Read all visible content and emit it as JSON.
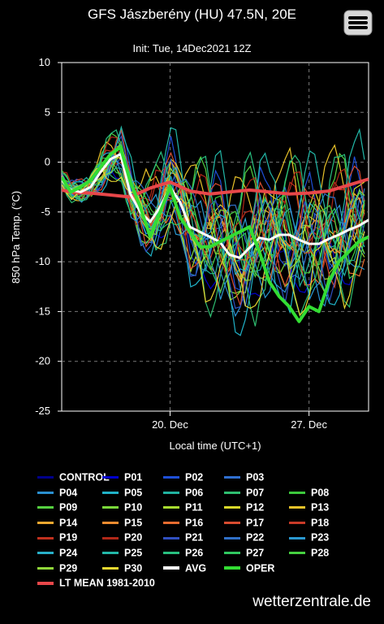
{
  "header": {
    "title": "GFS Jászberény (HU) 47.5N, 20E",
    "subtitle": "Init: Tue, 14Dec2021 12Z",
    "menu_icon": "hamburger-menu-icon"
  },
  "credit": "wetterzentrale.de",
  "chart_data": {
    "type": "line",
    "ylabel": "850 hPa Temp. (°C)",
    "xlabel": "Local time (UTC+1)",
    "ylim": [
      -25,
      10
    ],
    "yticks": [
      10,
      5,
      0,
      -5,
      -10,
      -15,
      -20,
      -25
    ],
    "xlim_days": [
      14.54,
      30.0
    ],
    "xticks": [
      {
        "label": "20. Dec",
        "day": 20
      },
      {
        "label": "27. Dec",
        "day": 27
      }
    ],
    "grid": true,
    "legend_position": "bottom",
    "series": [
      {
        "name": "LT MEAN 1981-2010",
        "color": "#e8474a",
        "width": 4,
        "x": [
          14.54,
          15,
          16,
          17,
          18,
          19,
          20,
          21,
          22,
          23,
          24,
          25,
          26,
          27,
          28,
          29,
          30
        ],
        "y": [
          -2.8,
          -3.0,
          -3.1,
          -3.3,
          -3.5,
          -2.6,
          -2.0,
          -2.9,
          -3.2,
          -3.0,
          -2.8,
          -3.0,
          -3.2,
          -3.1,
          -2.9,
          -2.3,
          -1.7
        ]
      },
      {
        "name": "AVG",
        "color": "#ffffff",
        "width": 3,
        "x": [
          14.54,
          15,
          15.5,
          16,
          16.5,
          17,
          17.5,
          18,
          18.5,
          19,
          19.5,
          20,
          20.5,
          21,
          21.5,
          22,
          22.5,
          23,
          23.5,
          24,
          24.5,
          25,
          25.5,
          26,
          26.5,
          27,
          27.5,
          28,
          28.5,
          29,
          29.5,
          30
        ],
        "y": [
          -1.8,
          -2.8,
          -3.0,
          -2.5,
          -1.0,
          0.3,
          0.8,
          -3.2,
          -5.0,
          -6.0,
          -4.5,
          -2.5,
          -4.0,
          -6.5,
          -7.0,
          -7.5,
          -8.0,
          -9.3,
          -9.6,
          -8.6,
          -7.6,
          -7.8,
          -7.3,
          -7.3,
          -7.8,
          -8.2,
          -8.2,
          -7.7,
          -7.3,
          -6.8,
          -6.4,
          -5.8
        ]
      },
      {
        "name": "OPER",
        "color": "#33dd33",
        "width": 4,
        "x": [
          14.54,
          15,
          15.5,
          16,
          16.5,
          17,
          17.5,
          18,
          18.5,
          19,
          19.5,
          20,
          20.5,
          21,
          21.5,
          22,
          22.5,
          23,
          23.5,
          24,
          24.5,
          25,
          25.5,
          26,
          26.5,
          27,
          27.5,
          28,
          28.5,
          29,
          29.5,
          30
        ],
        "y": [
          -1.5,
          -3.0,
          -2.5,
          -1.8,
          -0.5,
          0.8,
          1.5,
          -2.0,
          -4.5,
          -7.5,
          -5.0,
          -2.5,
          -5.5,
          -7.0,
          -8.5,
          -8.5,
          -8.0,
          -7.5,
          -7.0,
          -6.5,
          -9.0,
          -12.0,
          -13.5,
          -14.5,
          -16.0,
          -14.5,
          -15.0,
          -12.0,
          -10.0,
          -9.0,
          -8.0,
          -7.5
        ]
      }
    ],
    "ensemble_members": [
      {
        "name": "CONTROL",
        "color": "#00008b"
      },
      {
        "name": "P01",
        "color": "#0000cd"
      },
      {
        "name": "P02",
        "color": "#1e4fd8"
      },
      {
        "name": "P03",
        "color": "#2f6fd0"
      },
      {
        "name": "P04",
        "color": "#2a8fd0"
      },
      {
        "name": "P05",
        "color": "#20b2c8"
      },
      {
        "name": "P06",
        "color": "#20b2a0"
      },
      {
        "name": "P07",
        "color": "#2ebe70"
      },
      {
        "name": "P08",
        "color": "#3cc83c"
      },
      {
        "name": "P09",
        "color": "#55d040"
      },
      {
        "name": "P10",
        "color": "#7ad83a"
      },
      {
        "name": "P11",
        "color": "#a8dc30"
      },
      {
        "name": "P12",
        "color": "#d8d82a"
      },
      {
        "name": "P13",
        "color": "#e8c22a"
      },
      {
        "name": "P14",
        "color": "#f0a830"
      },
      {
        "name": "P15",
        "color": "#f08c30"
      },
      {
        "name": "P16",
        "color": "#e86c30"
      },
      {
        "name": "P17",
        "color": "#d84c30"
      },
      {
        "name": "P18",
        "color": "#c83a28"
      },
      {
        "name": "P19",
        "color": "#c0301e"
      },
      {
        "name": "P20",
        "color": "#b02818"
      },
      {
        "name": "P21",
        "color": "#3050c0"
      },
      {
        "name": "P22",
        "color": "#3070c8"
      },
      {
        "name": "P23",
        "color": "#2a98d0"
      },
      {
        "name": "P24",
        "color": "#28b0c8"
      },
      {
        "name": "P25",
        "color": "#22b8a8"
      },
      {
        "name": "P26",
        "color": "#28c080"
      },
      {
        "name": "P27",
        "color": "#30c860"
      },
      {
        "name": "P28",
        "color": "#46d040"
      },
      {
        "name": "P29",
        "color": "#90d83a"
      },
      {
        "name": "P30",
        "color": "#e8d830"
      }
    ]
  },
  "legend": [
    {
      "label": "CONTROL",
      "color": "#00008b"
    },
    {
      "label": "P01",
      "color": "#0000cd"
    },
    {
      "label": "P02",
      "color": "#1e4fd8"
    },
    {
      "label": "P03",
      "color": "#2f6fd0"
    },
    {
      "label": "P04",
      "color": "#2a8fd0"
    },
    {
      "label": "P05",
      "color": "#20b2c8"
    },
    {
      "label": "P06",
      "color": "#20b2a0"
    },
    {
      "label": "P07",
      "color": "#2ebe70"
    },
    {
      "label": "P08",
      "color": "#3cc83c"
    },
    {
      "label": "P09",
      "color": "#55d040"
    },
    {
      "label": "P10",
      "color": "#7ad83a"
    },
    {
      "label": "P11",
      "color": "#a8dc30"
    },
    {
      "label": "P12",
      "color": "#d8d82a"
    },
    {
      "label": "P13",
      "color": "#e8c22a"
    },
    {
      "label": "P14",
      "color": "#f0a830"
    },
    {
      "label": "P15",
      "color": "#f08c30"
    },
    {
      "label": "P16",
      "color": "#e86c30"
    },
    {
      "label": "P17",
      "color": "#d84c30"
    },
    {
      "label": "P18",
      "color": "#c83a28"
    },
    {
      "label": "P19",
      "color": "#c0301e"
    },
    {
      "label": "P20",
      "color": "#b02818"
    },
    {
      "label": "P21",
      "color": "#3050c0"
    },
    {
      "label": "P22",
      "color": "#3070c8"
    },
    {
      "label": "P23",
      "color": "#2a98d0"
    },
    {
      "label": "P24",
      "color": "#28b0c8"
    },
    {
      "label": "P25",
      "color": "#22b8a8"
    },
    {
      "label": "P26",
      "color": "#28c080"
    },
    {
      "label": "P27",
      "color": "#30c860"
    },
    {
      "label": "P28",
      "color": "#46d040"
    },
    {
      "label": "P29",
      "color": "#90d83a"
    },
    {
      "label": "P30",
      "color": "#e8d830"
    },
    {
      "label": "AVG",
      "color": "#ffffff"
    },
    {
      "label": "OPER",
      "color": "#33dd33"
    },
    {
      "label": "LT MEAN 1981-2010",
      "color": "#e8474a"
    }
  ]
}
